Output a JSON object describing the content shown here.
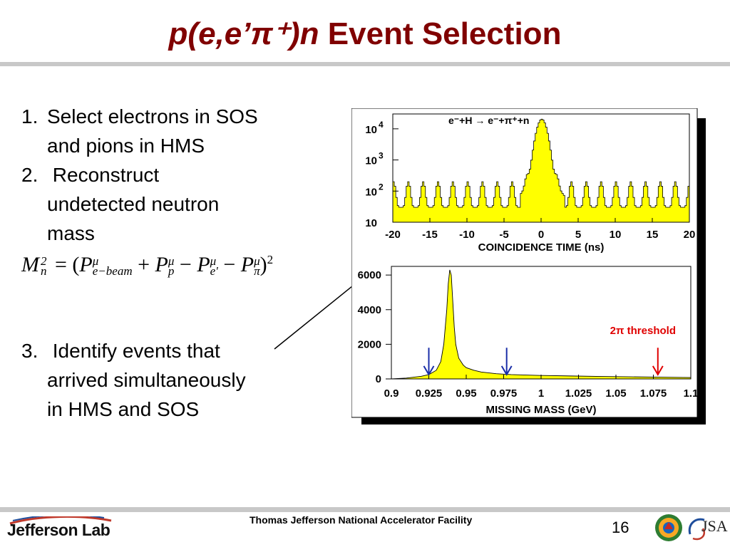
{
  "slide": {
    "title_reaction": "p(e,e’π⁺)n",
    "title_text": "Event Selection",
    "steps": [
      {
        "num": "1.",
        "text": "Select electrons in SOS\nand pions in HMS"
      },
      {
        "num": "2.",
        "text": " Reconstruct\nundetected neutron\nmass"
      },
      {
        "num": "3.",
        "text": " Identify events that\narrived simultaneously\nin HMS and SOS"
      }
    ],
    "equation": "M_n^2 = (P_{e-beam}^μ + P_p^μ − P_{e'}^μ − P_π^μ)^2",
    "footer_center": "Thomas Jefferson National Accelerator Facility",
    "page_number": "16",
    "logo_jlab": "Jefferson Lab",
    "logo_jsa": "JSA"
  },
  "colors": {
    "title": "#800000",
    "histogram_fill": "#ffff00",
    "threshold_arrow": "#e00000",
    "blue_arrows": "#1a2ea8"
  },
  "chart_data": [
    {
      "type": "area",
      "annotation": "e⁻+H → e⁻+π⁺+n",
      "xlabel": "COINCIDENCE TIME (ns)",
      "ylabel": "",
      "xlim": [
        -20,
        20
      ],
      "ylim": [
        10,
        30000
      ],
      "y_scale": "log",
      "x_ticks": [
        -20,
        -15,
        -10,
        -5,
        0,
        5,
        10,
        15,
        20
      ],
      "y_tick_labels": [
        {
          "base": "10",
          "exp": ""
        },
        {
          "base": "10",
          "exp": "2"
        },
        {
          "base": "10",
          "exp": "3"
        },
        {
          "base": "10",
          "exp": "4"
        }
      ],
      "bunch_period_ns": 2.0,
      "accidental_peak_level": 200,
      "accidental_valley_level": 30,
      "prompt_peak": {
        "x": 0,
        "y": 20000
      },
      "x": [
        -20,
        -19,
        -18,
        -17,
        -16,
        -15,
        -14,
        -13,
        -12,
        -11,
        -10,
        -9,
        -8,
        -7,
        -6,
        -5,
        -4,
        -3,
        -2,
        -1,
        0,
        1,
        2,
        3,
        4,
        5,
        6,
        7,
        8,
        9,
        10,
        11,
        12,
        13,
        14,
        15,
        16,
        17,
        18,
        19,
        20
      ],
      "values": [
        200,
        30,
        200,
        30,
        200,
        30,
        200,
        30,
        200,
        30,
        200,
        30,
        200,
        30,
        200,
        30,
        200,
        40,
        300,
        350,
        20000,
        350,
        300,
        40,
        200,
        30,
        200,
        30,
        200,
        30,
        200,
        30,
        200,
        30,
        200,
        30,
        200,
        30,
        200,
        30,
        200
      ]
    },
    {
      "type": "area",
      "xlabel": "MISSING MASS (GeV)",
      "ylabel": "",
      "xlim": [
        0.9,
        1.1
      ],
      "ylim": [
        0,
        6500
      ],
      "x_ticks": [
        0.9,
        0.925,
        0.95,
        0.975,
        1.0,
        1.025,
        1.05,
        1.075,
        1.1
      ],
      "x_tick_labels": [
        "0.9",
        "0.925",
        "0.95",
        "0.975",
        "1",
        "1.025",
        "1.05",
        "1.075",
        "1.1"
      ],
      "y_ticks": [
        0,
        2000,
        4000,
        6000
      ],
      "x": [
        0.9,
        0.91,
        0.92,
        0.925,
        0.93,
        0.933,
        0.935,
        0.937,
        0.938,
        0.939,
        0.94,
        0.941,
        0.942,
        0.943,
        0.945,
        0.948,
        0.95,
        0.955,
        0.96,
        0.97,
        0.98,
        1.0,
        1.02,
        1.04,
        1.06,
        1.08,
        1.1
      ],
      "values": [
        0,
        50,
        150,
        250,
        500,
        1000,
        2000,
        4000,
        5500,
        6300,
        6000,
        4500,
        3000,
        2000,
        1200,
        800,
        650,
        500,
        400,
        300,
        250,
        200,
        170,
        140,
        120,
        100,
        80
      ],
      "annotations": [
        {
          "text": "2π threshold",
          "color": "#e00000"
        }
      ],
      "arrows": [
        {
          "x": 0.925,
          "color": "#1a2ea8"
        },
        {
          "x": 0.977,
          "color": "#1a2ea8"
        },
        {
          "x": 1.078,
          "color": "#e00000"
        }
      ]
    }
  ]
}
